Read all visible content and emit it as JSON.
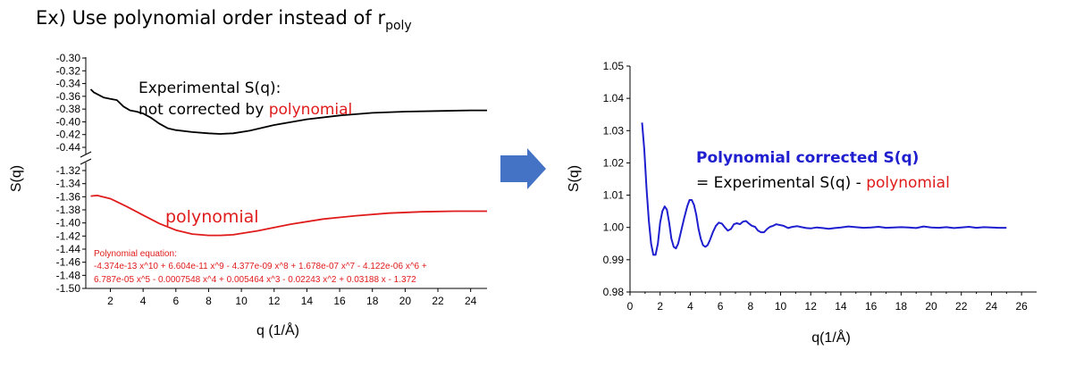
{
  "slide": {
    "title_main": "Ex) Use polynomial order instead of r",
    "title_sub": "poly",
    "accent_red": "#e01b1b",
    "accent_blue": "#1f1fcf",
    "arrow_color": "#4472c4",
    "arrow_icon": "right-arrow-icon"
  },
  "chart_data": [
    {
      "type": "line",
      "broken_y_axis": true,
      "xlabel": "q (1/Å)",
      "ylabel": "S(q)",
      "xlim": [
        0.5,
        25
      ],
      "xticks": [
        2,
        4,
        6,
        8,
        10,
        12,
        14,
        16,
        18,
        20,
        22,
        24
      ],
      "ylim_top": [
        -0.44,
        -0.3
      ],
      "ylim_bottom": [
        -1.5,
        -1.32
      ],
      "yticks_top": [
        "-0.30",
        "-0.32",
        "-0.34",
        "-0.36",
        "-0.38",
        "-0.40",
        "-0.42",
        "-0.44"
      ],
      "yticks_bottom": [
        "-1.32",
        "-1.34",
        "-1.36",
        "-1.38",
        "-1.40",
        "-1.42",
        "-1.44",
        "-1.46",
        "-1.48",
        "-1.50"
      ],
      "series": [
        {
          "color": "#000000",
          "x": [
            0.8,
            1.0,
            1.3,
            1.6,
            2.0,
            2.4,
            2.8,
            3.2,
            3.6,
            4.0,
            4.5,
            5.0,
            5.5,
            6.0,
            7.0,
            8.0,
            8.7,
            9.5,
            10.5,
            12.0,
            14.0,
            16.0,
            18.0,
            20.0,
            22.0,
            24.0,
            25.0
          ],
          "y": [
            -0.349,
            -0.354,
            -0.358,
            -0.362,
            -0.364,
            -0.366,
            -0.376,
            -0.382,
            -0.384,
            -0.387,
            -0.394,
            -0.403,
            -0.41,
            -0.413,
            -0.416,
            -0.418,
            -0.419,
            -0.418,
            -0.414,
            -0.405,
            -0.396,
            -0.39,
            -0.386,
            -0.384,
            -0.383,
            -0.382,
            -0.382
          ]
        },
        {
          "color": "#e01b1b",
          "x": [
            0.8,
            1.2,
            2.0,
            3.0,
            4.0,
            5.0,
            6.0,
            7.0,
            8.0,
            8.7,
            9.5,
            11.0,
            13.0,
            15.0,
            17.0,
            19.0,
            21.0,
            23.0,
            25.0
          ],
          "y": [
            -1.359,
            -1.358,
            -1.363,
            -1.375,
            -1.388,
            -1.401,
            -1.411,
            -1.417,
            -1.419,
            -1.419,
            -1.418,
            -1.412,
            -1.402,
            -1.394,
            -1.389,
            -1.385,
            -1.383,
            -1.382,
            -1.382
          ]
        }
      ],
      "annotations": {
        "experimental_line1": "Experimental  S(q):",
        "experimental_line2": "not corrected  by",
        "experimental_red": "polynomial",
        "polynomial_label": "polynomial",
        "equation_title": "Polynomial equation:",
        "equation_line1": "-4.374e-13 x^10 + 6.604e-11 x^9 - 4.377e-09 x^8 + 1.678e-07 x^7 - 4.122e-06 x^6 +",
        "equation_line2": "6.787e-05 x^5 - 0.0007548 x^4 + 0.005464 x^3 - 0.02243 x^2 + 0.03188 x - 1.372"
      }
    },
    {
      "type": "line",
      "xlabel": "q(1/Å)",
      "ylabel": "S(q)",
      "xlim": [
        0,
        27
      ],
      "ylim": [
        0.98,
        1.05
      ],
      "xticks": [
        0,
        2,
        4,
        6,
        8,
        10,
        12,
        14,
        16,
        18,
        20,
        22,
        24,
        26
      ],
      "yticks": [
        "0.98",
        "0.99",
        "1.00",
        "1.01",
        "1.02",
        "1.03",
        "1.04",
        "1.05"
      ],
      "series": [
        {
          "color": "#1f1fcf",
          "x": [
            0.8,
            0.95,
            1.1,
            1.25,
            1.4,
            1.55,
            1.7,
            1.85,
            2.0,
            2.15,
            2.3,
            2.45,
            2.6,
            2.75,
            2.9,
            3.05,
            3.2,
            3.4,
            3.6,
            3.8,
            3.95,
            4.1,
            4.25,
            4.4,
            4.55,
            4.7,
            4.85,
            5.0,
            5.15,
            5.3,
            5.5,
            5.7,
            5.9,
            6.1,
            6.3,
            6.5,
            6.7,
            6.9,
            7.1,
            7.3,
            7.5,
            7.7,
            7.9,
            8.1,
            8.3,
            8.5,
            8.7,
            8.9,
            9.1,
            9.3,
            9.5,
            9.7,
            9.9,
            10.2,
            10.5,
            10.8,
            11.1,
            11.4,
            11.7,
            12.0,
            12.4,
            12.8,
            13.2,
            13.6,
            14.0,
            14.5,
            15.0,
            15.5,
            16.0,
            16.5,
            17.0,
            17.5,
            18.0,
            18.5,
            19.0,
            19.5,
            20.0,
            20.5,
            21.0,
            21.5,
            22.0,
            22.5,
            23.0,
            23.5,
            24.0,
            24.5,
            25.0
          ],
          "y": [
            1.0325,
            1.024,
            1.012,
            1.002,
            0.995,
            0.9915,
            0.9915,
            0.995,
            1.0015,
            1.005,
            1.0065,
            1.0055,
            1.0015,
            0.9965,
            0.994,
            0.9935,
            0.995,
            0.999,
            1.003,
            1.0065,
            1.0085,
            1.0085,
            1.007,
            1.004,
            0.9995,
            0.9965,
            0.9945,
            0.994,
            0.9945,
            0.996,
            0.9985,
            1.0005,
            1.0015,
            1.0012,
            1.0,
            0.999,
            0.9995,
            1.001,
            1.0013,
            1.001,
            1.0018,
            1.002,
            1.0012,
            1.0005,
            1.0002,
            0.999,
            0.9985,
            0.9985,
            0.9995,
            1.0002,
            1.0005,
            1.001,
            1.0008,
            1.0005,
            0.9998,
            1.0002,
            1.0004,
            1.0001,
            0.9998,
            0.9997,
            1.0,
            0.9998,
            0.9996,
            0.9998,
            1.0,
            1.0003,
            1.0001,
            0.9999,
            1.0,
            1.0002,
            0.9999,
            1.0,
            1.0001,
            1.0,
            0.9998,
            1.0003,
            1.0,
            0.9999,
            1.0001,
            0.9998,
            1.0,
            1.0002,
            0.9999,
            1.0001,
            1.0,
            0.9999,
            0.9999
          ]
        }
      ],
      "annotations": {
        "line1_blue": "Polynomial corrected S(q)",
        "line2_black": "= Experimental S(q) - ",
        "line2_red": "polynomial"
      }
    }
  ]
}
